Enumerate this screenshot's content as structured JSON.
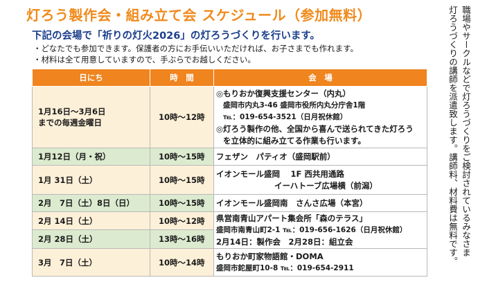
{
  "header": {
    "title": "灯ろう製作会・組み立て会 スケジュール（参加無料）",
    "subtitle": "下記の会場で「祈りの灯火2026」の灯ろうづくりを行います。",
    "notes": [
      "・どなたでも参加できます。保護者の方にお手伝いいただければ、お子さまでも作れます。",
      "・材料は全て用意していますので、手ぶらでお越しください。"
    ]
  },
  "table": {
    "headers": {
      "date": "日にち",
      "time": "時　間",
      "venue": "会　場"
    },
    "rows": [
      {
        "date_lines": [
          "1月16日～3月6日",
          "までの毎週金曜日"
        ],
        "time": "10時～12時",
        "venue_lines": [
          "◎もりおか復興支援センター（内丸）",
          "盛岡市内丸3-46 盛岡市役所内丸分庁舎1階",
          "℡：019-654-3521（日月祝休館）",
          "◎灯ろう製作の他、全国から喜んで送られてきた灯ろう",
          "を立体的に組み立てる作業も行います。"
        ]
      },
      {
        "date": "1月12日（月・祝）",
        "time": "10時～15時",
        "venue_lines": [
          "フェザン　パティオ（盛岡駅前）"
        ]
      },
      {
        "date": "1月 31日（土）",
        "time": "10時～15時",
        "venue_lines": [
          "イオンモール盛岡　 1F 西共用通路",
          "イーハトーブ広場横（前潟）"
        ]
      },
      {
        "date": "2月　7日（土）8日（日）",
        "time": "10時～15時",
        "venue_lines": [
          "イオンモール盛岡南　さんさ広場（本宮）"
        ]
      },
      {
        "date": "2月 14日（土）",
        "time": "10時～12時"
      },
      {
        "date": "2月 28日（土）",
        "time": "13時～16時"
      },
      {
        "date": "3月　7日（土）",
        "time": "10時～14時",
        "venue_lines": [
          "もりおか町家物語館・DOMA",
          "盛岡市鉈屋町10-8 ℡：019-654-2911"
        ]
      }
    ],
    "merged_venue_lines": [
      "県営南青山アパート集会所「森のテラス」",
      "盛岡市南青山町2-1 ℡：019-656-1626（日月祝休館）",
      "2月14日：製作会　2月28日：組立会"
    ]
  },
  "side_note": {
    "columns": [
      "職場やサークルなどで灯ろうづくりをご検討されているみなさま",
      "灯ろうづくりの講師を派遣致します。講師料、材料費は無料です。",
      "　"
    ]
  },
  "colors": {
    "accent": "#f08a1c",
    "subtitle_blue": "#1b3f8c",
    "warm_row": "#fdf0d8",
    "green_row": "#dcebcf"
  }
}
